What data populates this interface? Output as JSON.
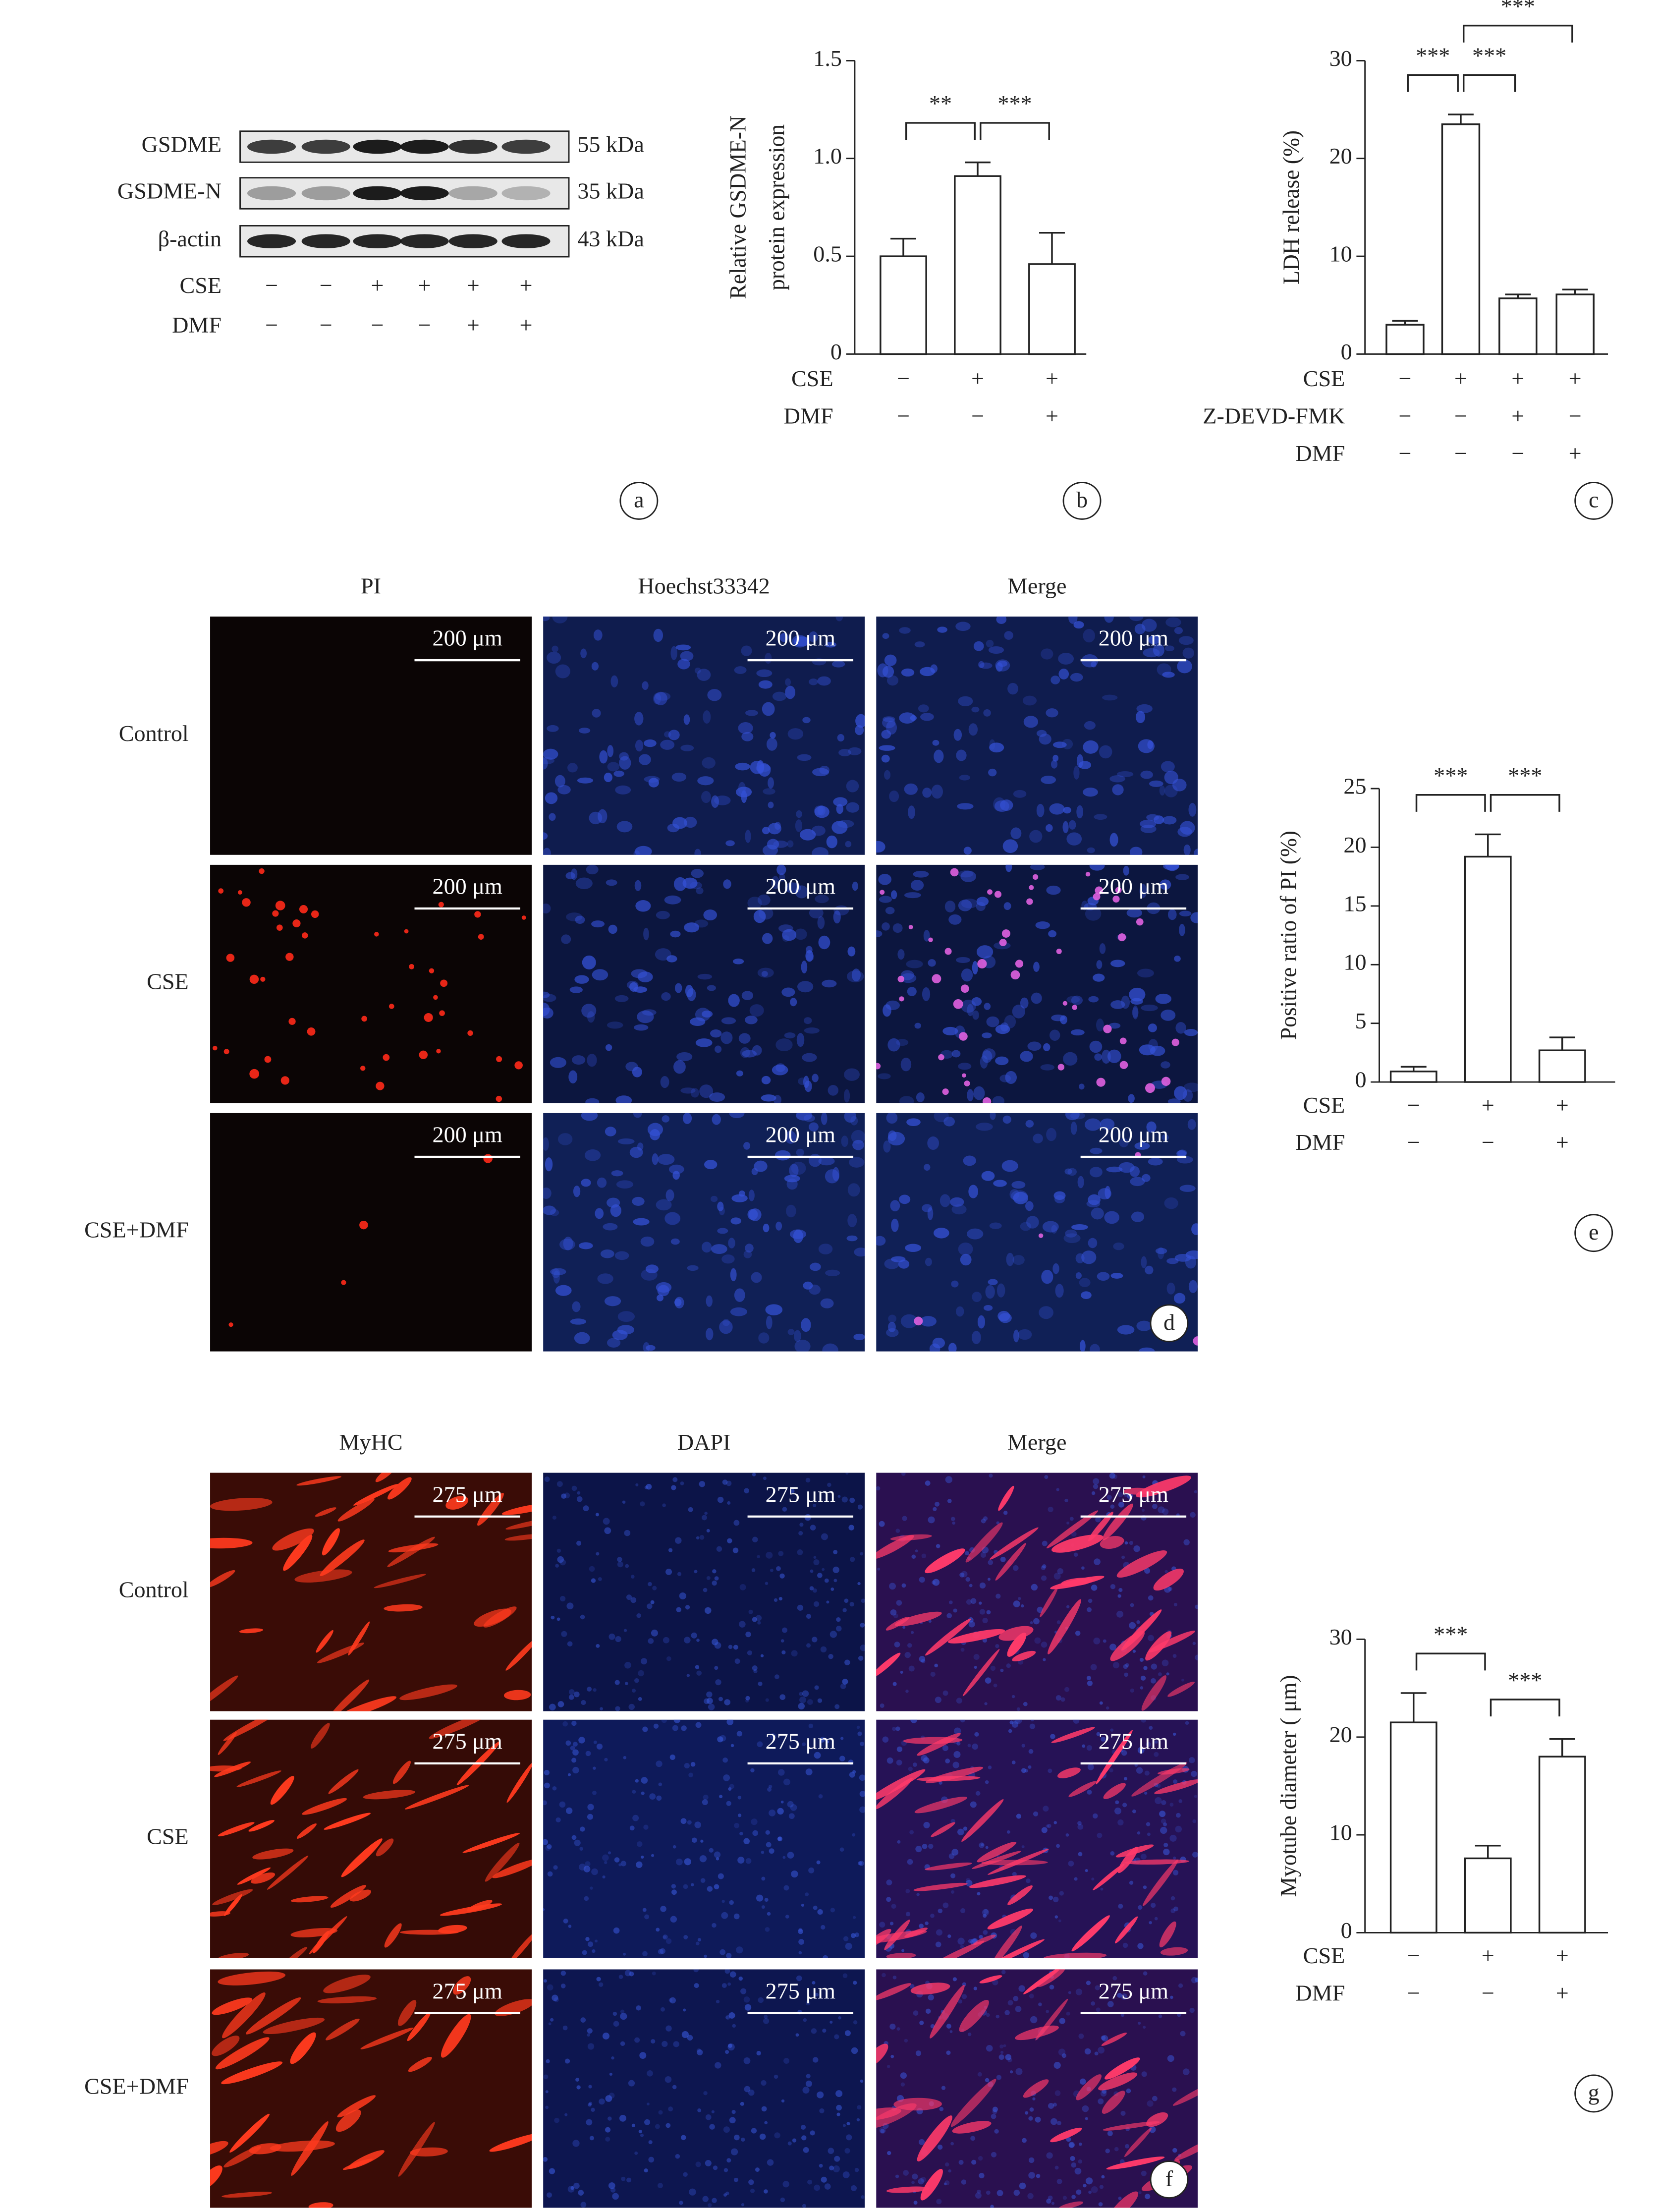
{
  "blot": {
    "panel": "a",
    "rows": [
      "GSDME",
      "GSDME-N",
      "β-actin"
    ],
    "sizes": [
      "55 kDa",
      "35 kDa",
      "43 kDa"
    ],
    "conditions": [
      {
        "name": "CSE",
        "values": [
          "−",
          "−",
          "+",
          "+",
          "+",
          "+"
        ]
      },
      {
        "name": "DMF",
        "values": [
          "−",
          "−",
          "−",
          "−",
          "+",
          "+"
        ]
      }
    ]
  },
  "chart_data": [
    {
      "type": "bar",
      "panel": "b",
      "ylabel": [
        "Relative GSDME-N",
        "protein expression"
      ],
      "color": "#ffffff",
      "values": [
        0.5,
        0.91,
        0.46
      ],
      "errors": [
        0.09,
        0.07,
        0.16
      ],
      "ylim": [
        0,
        1.5
      ],
      "yticks": [
        0,
        0.5,
        {
          "value": 1,
          "label": "1.0"
        },
        1.5
      ],
      "conditions": [
        {
          "name": "CSE",
          "values": [
            "−",
            "+",
            "+"
          ]
        },
        {
          "name": "DMF",
          "values": [
            "−",
            "−",
            "+"
          ]
        }
      ],
      "significance": [
        {
          "label": "**",
          "from": 0,
          "to": 1
        },
        {
          "label": "***",
          "from": 1,
          "to": 2
        }
      ]
    },
    {
      "type": "bar",
      "panel": "c",
      "ylabel": [
        "LDH release (%)"
      ],
      "color": "#ffffff",
      "values": [
        3,
        23.5,
        5.7,
        6.1
      ],
      "errors": [
        0.4,
        1,
        0.4,
        0.5
      ],
      "ylim": [
        0,
        30
      ],
      "yticks": [
        0,
        10,
        20,
        30
      ],
      "conditions": [
        {
          "name": "CSE",
          "values": [
            "−",
            "+",
            "+",
            "+"
          ]
        },
        {
          "name": "Z-DEVD-FMK",
          "values": [
            "−",
            "−",
            "+",
            "−"
          ]
        },
        {
          "name": "DMF",
          "values": [
            "−",
            "−",
            "−",
            "+"
          ]
        }
      ],
      "significance": [
        {
          "label": "***",
          "from": 0,
          "to": 1
        },
        {
          "label": "***",
          "from": 1,
          "to": 2
        },
        {
          "label": "***",
          "from": 1,
          "to": 3
        }
      ]
    },
    {
      "type": "bar",
      "panel": "e",
      "ylabel": [
        "Positive ratio of PI (%)"
      ],
      "color": "#ffffff",
      "values": [
        0.9,
        19.2,
        2.7
      ],
      "errors": [
        0.4,
        1.9,
        1.1
      ],
      "ylim": [
        0,
        25
      ],
      "yticks": [
        0,
        5,
        10,
        15,
        20,
        25
      ],
      "conditions": [
        {
          "name": "CSE",
          "values": [
            "−",
            "+",
            "+"
          ]
        },
        {
          "name": "DMF",
          "values": [
            "−",
            "−",
            "+"
          ]
        }
      ],
      "significance": [
        {
          "label": "***",
          "from": 0,
          "to": 1
        },
        {
          "label": "***",
          "from": 1,
          "to": 2
        }
      ]
    },
    {
      "type": "bar",
      "panel": "g",
      "ylabel": [
        "Myotube diameter ( μm)"
      ],
      "color": "#ffffff",
      "values": [
        21.5,
        7.6,
        18
      ],
      "errors": [
        3,
        1.3,
        1.8
      ],
      "ylim": [
        0,
        30
      ],
      "yticks": [
        0,
        10,
        20,
        30
      ],
      "conditions": [
        {
          "name": "CSE",
          "values": [
            "−",
            "+",
            "+"
          ]
        },
        {
          "name": "DMF",
          "values": [
            "−",
            "−",
            "+"
          ]
        }
      ],
      "significance": [
        {
          "label": "***",
          "from": 0,
          "to": 1
        },
        {
          "label": "***",
          "from": 1,
          "to": 2
        }
      ]
    }
  ],
  "micrographs": [
    {
      "panel": "d",
      "columns": [
        "PI",
        "Hoechst33342",
        "Merge"
      ],
      "rows": [
        "Control",
        "CSE",
        "CSE+DMF"
      ],
      "scale_bar": "200 μm"
    },
    {
      "panel": "f",
      "columns": [
        "MyHC",
        "DAPI",
        "Merge"
      ],
      "rows": [
        "Control",
        "CSE",
        "CSE+DMF"
      ],
      "scale_bar": "275 μm"
    }
  ]
}
